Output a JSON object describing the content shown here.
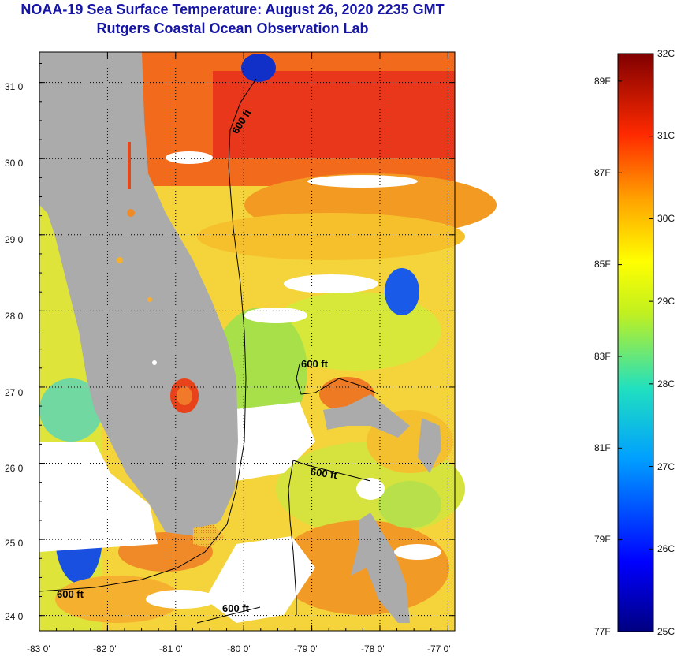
{
  "title": {
    "line1": "NOAA-19 Sea Surface Temperature:  August 26, 2020 2235 GMT",
    "line2": "Rutgers Coastal Ocean Observation Lab"
  },
  "map": {
    "lat_labels": [
      "31 0'",
      "30 0'",
      "29 0'",
      "28 0'",
      "27 0'",
      "26 0'",
      "25 0'",
      "24 0'"
    ],
    "lon_labels": [
      "-83 0'",
      "-82 0'",
      "-81 0'",
      "-80 0'",
      "-79 0'",
      "-78 0'",
      "-77 0'"
    ],
    "lat_range": [
      23.8,
      31.4
    ],
    "lon_range": [
      -83.0,
      -76.9
    ],
    "contour_labels": [
      "600 ft",
      "600 ft",
      "600 ft",
      "600 ft",
      "600 ft"
    ]
  },
  "colorbar": {
    "celsius_labels": [
      "32C",
      "31C",
      "30C",
      "29C",
      "28C",
      "27C",
      "26C",
      "25C"
    ],
    "fahrenheit_labels": [
      "89F",
      "87F",
      "85F",
      "83F",
      "81F",
      "79F",
      "77F"
    ],
    "range_c": [
      25,
      32
    ]
  },
  "colors": {
    "title": "#1515a8",
    "land": "#ababab",
    "cloud": "#ffffff"
  }
}
